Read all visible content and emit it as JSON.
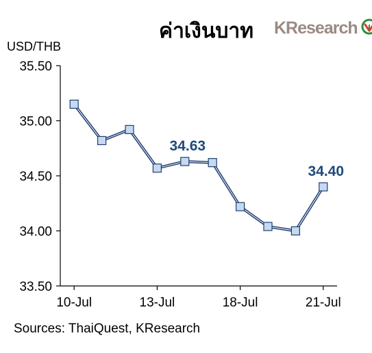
{
  "header": {
    "title": "ค่าเงินบาท",
    "logo_text": "KResearch",
    "logo_icon": "kbank-leaf-icon"
  },
  "footer": {
    "source": "Sources: ThaiQuest, KResearch"
  },
  "colors": {
    "line": "#1f3d6e",
    "marker_fill": "#c5d9f1",
    "marker_stroke": "#1f3d6e",
    "data_label": "#1f497d",
    "logo_text": "#9a8a82",
    "logo_green": "#2e8b3a",
    "logo_red": "#e03a2f"
  },
  "chart_data": {
    "type": "line",
    "title": "ค่าเงินบาท",
    "ylabel": "USD/THB",
    "xlabel": "",
    "ylim": [
      33.5,
      35.5
    ],
    "y_ticks": [
      35.5,
      35.0,
      34.5,
      34.0,
      33.5
    ],
    "y_tick_labels": [
      "35.50",
      "35.00",
      "34.50",
      "34.00",
      "33.50"
    ],
    "x_tick_labels": [
      {
        "label": "10-Jul",
        "index": 0
      },
      {
        "label": "13-Jul",
        "index": 3
      },
      {
        "label": "18-Jul",
        "index": 6
      },
      {
        "label": "21-Jul",
        "index": 9
      }
    ],
    "grid": false,
    "series": [
      {
        "values": [
          35.15,
          34.82,
          34.92,
          34.57,
          34.63,
          34.62,
          34.22,
          34.04,
          34.0,
          34.4
        ]
      }
    ],
    "data_labels": [
      {
        "index": 4,
        "text": "34.63"
      },
      {
        "index": 9,
        "text": "34.40"
      }
    ]
  }
}
